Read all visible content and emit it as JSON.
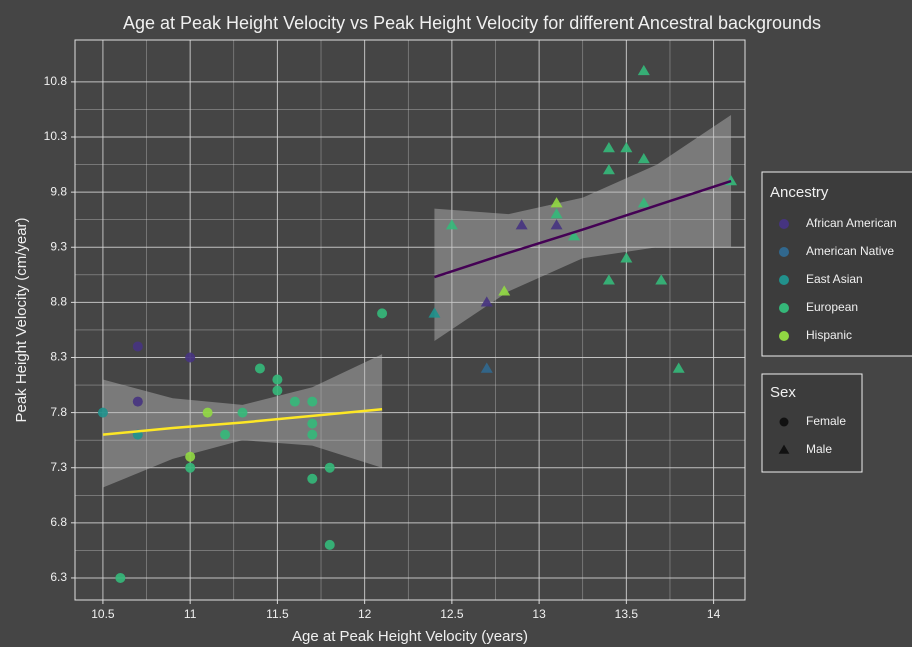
{
  "chart_data": {
    "type": "scatter",
    "title": "Age at Peak Height Velocity vs Peak Height Velocity for different Ancestral backgrounds",
    "x_label": "Age at Peak Height Velocity (years)",
    "y_label": "Peak Height Velocity (cm/year)",
    "xlim": [
      10.34,
      14.18
    ],
    "ylim": [
      6.1,
      11.18
    ],
    "xticks": [
      10.5,
      11.0,
      11.5,
      12.0,
      12.5,
      13.0,
      13.5,
      14.0
    ],
    "yticks": [
      6.3,
      6.8,
      7.3,
      7.8,
      8.3,
      8.8,
      9.3,
      9.8,
      10.3,
      10.8
    ],
    "grid": true,
    "minor_grid": true,
    "legend_title": "Ancestry",
    "series": [
      {
        "name": "African American",
        "color": "#463480",
        "x": [
          10.7,
          10.7,
          11.0,
          12.7,
          12.9,
          13.1
        ],
        "values": [
          8.4,
          7.9,
          8.3,
          8.8,
          9.5,
          9.5
        ],
        "shapes": [
          "circle",
          "circle",
          "circle",
          "triangle",
          "triangle",
          "triangle"
        ]
      },
      {
        "name": "American Native",
        "color": "#31688e",
        "x": [
          12.7
        ],
        "values": [
          8.2
        ],
        "shapes": [
          "triangle"
        ]
      },
      {
        "name": "East Asian",
        "color": "#21918c",
        "x": [
          10.5,
          10.7,
          12.4
        ],
        "values": [
          7.8,
          7.6,
          8.7
        ],
        "shapes": [
          "circle",
          "circle",
          "triangle"
        ]
      },
      {
        "name": "European",
        "color": "#35b779",
        "x": [
          10.6,
          11.0,
          11.2,
          11.3,
          11.4,
          11.5,
          11.5,
          11.6,
          11.7,
          11.7,
          11.7,
          11.7,
          11.8,
          11.8,
          12.1,
          12.5,
          13.1,
          13.2,
          13.4,
          13.4,
          13.4,
          13.5,
          13.5,
          13.6,
          13.6,
          13.6,
          13.7,
          13.8,
          14.1
        ],
        "values": [
          6.3,
          7.3,
          7.6,
          7.8,
          8.2,
          8.1,
          8.0,
          7.9,
          7.9,
          7.7,
          7.6,
          7.2,
          7.3,
          6.6,
          8.7,
          9.5,
          9.6,
          9.4,
          10.2,
          10.0,
          9.0,
          10.2,
          9.2,
          10.9,
          10.1,
          9.7,
          9.0,
          8.2,
          9.9
        ],
        "shapes": [
          "circle",
          "circle",
          "circle",
          "circle",
          "circle",
          "circle",
          "circle",
          "circle",
          "circle",
          "circle",
          "circle",
          "circle",
          "circle",
          "circle",
          "circle",
          "triangle",
          "triangle",
          "triangle",
          "triangle",
          "triangle",
          "triangle",
          "triangle",
          "triangle",
          "triangle",
          "triangle",
          "triangle",
          "triangle",
          "triangle",
          "triangle"
        ]
      },
      {
        "name": "Hispanic",
        "color": "#90d743",
        "x": [
          11.0,
          11.1,
          12.8,
          13.1
        ],
        "values": [
          7.4,
          7.8,
          8.9,
          9.7
        ],
        "shapes": [
          "circle",
          "circle",
          "triangle",
          "triangle"
        ]
      }
    ],
    "shape_legend": {
      "title": "Sex",
      "items": [
        {
          "name": "Female",
          "shape": "circle"
        },
        {
          "name": "Male",
          "shape": "triangle"
        }
      ]
    },
    "fits": [
      {
        "color": "#fde725",
        "x": [
          10.5,
          10.9,
          11.3,
          11.7,
          12.1
        ],
        "values": [
          7.6,
          7.66,
          7.71,
          7.77,
          7.83
        ],
        "lower": [
          7.12,
          7.38,
          7.55,
          7.5,
          7.3
        ],
        "upper": [
          8.1,
          7.93,
          7.87,
          8.03,
          8.33
        ]
      },
      {
        "color": "#440154",
        "x": [
          12.4,
          12.825,
          13.25,
          13.675,
          14.1
        ],
        "values": [
          9.03,
          9.25,
          9.46,
          9.68,
          9.9
        ],
        "lower": [
          8.45,
          8.9,
          9.2,
          9.3,
          9.3
        ],
        "upper": [
          9.65,
          9.6,
          9.75,
          10.05,
          10.5
        ]
      }
    ]
  }
}
